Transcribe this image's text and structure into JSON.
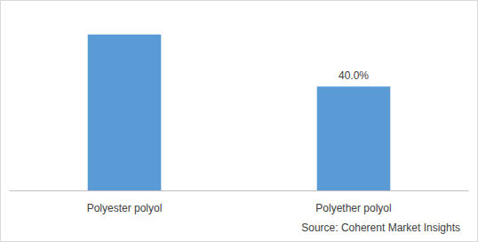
{
  "chart_data": {
    "type": "bar",
    "categories": [
      "Polyester polyol",
      "Polyether polyol"
    ],
    "values": [
      60,
      40
    ],
    "value_labels": [
      null,
      "40.0%"
    ],
    "data_labels": true,
    "color": "#5b9bd5",
    "ylim": [
      0,
      70
    ],
    "yticks": [
      0,
      70
    ],
    "grid": false,
    "tick_labels": "x",
    "source": "Source: Coherent Market Insights"
  }
}
